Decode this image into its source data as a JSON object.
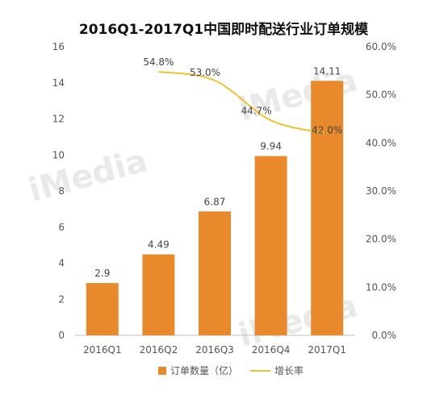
{
  "chart_data": {
    "type": "bar",
    "title": "2016Q1-2017Q1中国即时配送行业订单规模",
    "categories": [
      "2016Q1",
      "2016Q2",
      "2016Q3",
      "2016Q4",
      "2017Q1"
    ],
    "series": [
      {
        "name": "订单数量（亿）",
        "type": "bar",
        "axis": "left",
        "color": "#E8892B",
        "values": [
          2.9,
          4.49,
          6.87,
          9.94,
          14.11
        ],
        "labels": [
          "2.9",
          "4.49",
          "6.87",
          "9.94",
          "14.11"
        ]
      },
      {
        "name": "增长率",
        "type": "line",
        "axis": "right",
        "color": "#F2C12E",
        "values": [
          null,
          54.8,
          53.0,
          44.7,
          42.0
        ],
        "labels": [
          "",
          "54.8%",
          "53.0%",
          "44.7%",
          "42.0%"
        ]
      }
    ],
    "y_left": {
      "min": 0,
      "max": 16,
      "ticks": [
        "0",
        "2",
        "4",
        "6",
        "8",
        "10",
        "12",
        "14",
        "16"
      ]
    },
    "y_right": {
      "min": 0,
      "max": 60,
      "ticks": [
        "0.0%",
        "10.0%",
        "20.0%",
        "30.0%",
        "40.0%",
        "50.0%",
        "60.0%"
      ]
    },
    "grid": false,
    "legend_position": "bottom"
  },
  "watermark": "iMedia"
}
